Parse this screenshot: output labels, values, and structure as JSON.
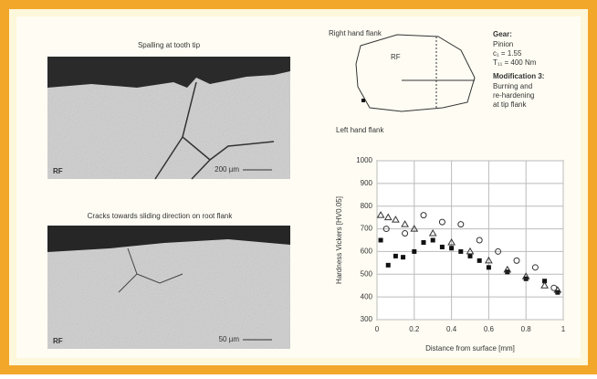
{
  "figure": {
    "panels": [
      {
        "caption": "Spalling at tooth tip",
        "label": "RF",
        "scale": "200 µm"
      },
      {
        "caption": "Cracks towards sliding direction on root flank",
        "label": "RF",
        "scale": "50 µm"
      }
    ],
    "diagram": {
      "right_flank": "Right hand flank",
      "left_flank": "Left hand flank",
      "marker": "RF"
    },
    "gear_info": {
      "title": "Gear:",
      "lines": [
        "Pinion",
        "c₁ = 1.55",
        "T₁₁ = 400 Nm"
      ],
      "modification": "Modification 3:",
      "modification_lines": [
        "Burning and",
        "re-hardening",
        "at tip flank"
      ]
    }
  },
  "chart_data": {
    "type": "scatter",
    "x_label": "Distance from surface [mm]",
    "y_label": "Hardness  Vickers [HV0.05]",
    "xlim": [
      0,
      1
    ],
    "xticks": [
      0,
      0.2,
      0.4,
      0.6,
      0.8,
      1
    ],
    "ylim": [
      300,
      1000
    ],
    "yticks": [
      300,
      400,
      500,
      600,
      700,
      800,
      900,
      1000
    ],
    "grid": true,
    "series": [
      {
        "marker": "square",
        "color": "#111111",
        "x": [
          0.02,
          0.06,
          0.1,
          0.14,
          0.2,
          0.25,
          0.3,
          0.35,
          0.4,
          0.45,
          0.5,
          0.55,
          0.6,
          0.7,
          0.8,
          0.9,
          0.97
        ],
        "values": [
          650,
          540,
          580,
          575,
          600,
          640,
          650,
          620,
          615,
          600,
          580,
          560,
          530,
          510,
          480,
          470,
          420
        ]
      },
      {
        "marker": "triangle",
        "color": "#333333",
        "x": [
          0.02,
          0.06,
          0.1,
          0.15,
          0.2,
          0.3,
          0.4,
          0.5,
          0.6,
          0.7,
          0.8,
          0.9,
          0.97
        ],
        "values": [
          760,
          750,
          740,
          720,
          700,
          680,
          640,
          600,
          560,
          520,
          490,
          450,
          430
        ]
      },
      {
        "marker": "circle",
        "color": "#333333",
        "x": [
          0.05,
          0.15,
          0.25,
          0.35,
          0.45,
          0.55,
          0.65,
          0.75,
          0.85,
          0.95
        ],
        "values": [
          700,
          680,
          760,
          730,
          720,
          650,
          600,
          560,
          530,
          440
        ]
      }
    ]
  }
}
